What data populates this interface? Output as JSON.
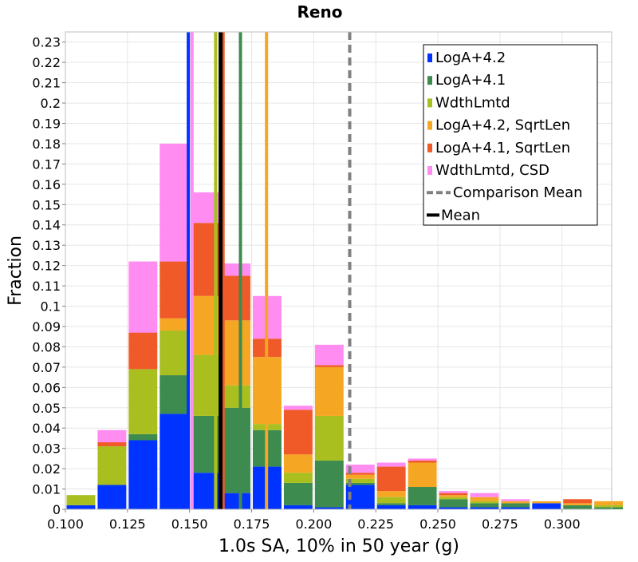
{
  "chart_data": {
    "type": "bar",
    "stacked": true,
    "title": "Reno",
    "xlabel": "1.0s SA, 10% in 50 year (g)",
    "ylabel": "Fraction",
    "xlim": [
      0.1,
      0.32
    ],
    "ylim": [
      0,
      0.235
    ],
    "bin_width": 0.0125,
    "bin_centers": [
      0.10625,
      0.11875,
      0.13125,
      0.14375,
      0.15625,
      0.16875,
      0.18125,
      0.19375,
      0.20625,
      0.21875,
      0.23125,
      0.24375,
      0.25625,
      0.26875,
      0.28125,
      0.29375,
      0.30625,
      0.31875
    ],
    "x_ticks": [
      "0.100",
      "0.125",
      "0.150",
      "0.175",
      "0.200",
      "0.225",
      "0.250",
      "0.275",
      "0.300"
    ],
    "x_tick_values": [
      0.1,
      0.125,
      0.15,
      0.175,
      0.2,
      0.225,
      0.25,
      0.275,
      0.3
    ],
    "y_ticks": [
      "0",
      "0.01",
      "0.02",
      "0.03",
      "0.04",
      "0.05",
      "0.06",
      "0.07",
      "0.08",
      "0.09",
      "0.1",
      "0.11",
      "0.12",
      "0.13",
      "0.14",
      "0.15",
      "0.16",
      "0.17",
      "0.18",
      "0.19",
      "0.2",
      "0.21",
      "0.22",
      "0.23"
    ],
    "y_tick_values": [
      0,
      0.01,
      0.02,
      0.03,
      0.04,
      0.05,
      0.06,
      0.07,
      0.08,
      0.09,
      0.1,
      0.11,
      0.12,
      0.13,
      0.14,
      0.15,
      0.16,
      0.17,
      0.18,
      0.19,
      0.2,
      0.21,
      0.22,
      0.23
    ],
    "grid": true,
    "legend_position": "top-right",
    "series": [
      {
        "name": "LogA+4.2",
        "color": "#0033ff",
        "values": [
          0.002,
          0.012,
          0.034,
          0.047,
          0.018,
          0.008,
          0.021,
          0.002,
          0.001,
          0.012,
          0.002,
          0.002,
          0.001,
          0.001,
          0.001,
          0.003,
          0.0,
          0.0
        ]
      },
      {
        "name": "LogA+4.1",
        "color": "#3d8b4e",
        "values": [
          0.0,
          0.0,
          0.003,
          0.019,
          0.028,
          0.042,
          0.018,
          0.011,
          0.023,
          0.001,
          0.001,
          0.009,
          0.004,
          0.002,
          0.002,
          0.0,
          0.002,
          0.001
        ]
      },
      {
        "name": "WdthLmtd",
        "color": "#a8bf1f",
        "values": [
          0.005,
          0.019,
          0.032,
          0.022,
          0.03,
          0.011,
          0.003,
          0.005,
          0.022,
          0.002,
          0.003,
          0.0,
          0.001,
          0.001,
          0.0,
          0.0,
          0.0,
          0.001
        ]
      },
      {
        "name": "LogA+4.2, SqrtLen",
        "color": "#f5a623",
        "values": [
          0.0,
          0.0,
          0.0,
          0.006,
          0.029,
          0.032,
          0.033,
          0.009,
          0.024,
          0.002,
          0.003,
          0.012,
          0.001,
          0.002,
          0.001,
          0.001,
          0.001,
          0.002
        ]
      },
      {
        "name": "LogA+4.1, SqrtLen",
        "color": "#f05a28",
        "values": [
          0.0,
          0.002,
          0.018,
          0.028,
          0.036,
          0.022,
          0.009,
          0.022,
          0.001,
          0.001,
          0.012,
          0.001,
          0.001,
          0.0,
          0.0,
          0.0,
          0.002,
          0.0
        ]
      },
      {
        "name": "WdthLmtd, CSD",
        "color": "#ff8cf0",
        "values": [
          0.0,
          0.006,
          0.035,
          0.058,
          0.015,
          0.006,
          0.021,
          0.002,
          0.01,
          0.004,
          0.002,
          0.001,
          0.001,
          0.002,
          0.001,
          0.0,
          0.0,
          0.0
        ]
      }
    ],
    "vertical_lines": [
      {
        "name": "LogA+4.2 mean",
        "x": 0.1495,
        "color": "#0033ff",
        "style": "solid"
      },
      {
        "name": "WdthLmtd mean",
        "x": 0.1605,
        "color": "#a8bf1f",
        "style": "solid"
      },
      {
        "name": "LogA+4.1, SqrtLen mean",
        "x": 0.1635,
        "color": "#f05a28",
        "style": "solid"
      },
      {
        "name": "LogA+4.1 mean",
        "x": 0.1705,
        "color": "#3d8b4e",
        "style": "solid"
      },
      {
        "name": "LogA+4.2, SqrtLen mean",
        "x": 0.181,
        "color": "#f5a623",
        "style": "solid"
      },
      {
        "name": "WdthLmtd, CSD mean",
        "x": 0.151,
        "color": "#ff8cf0",
        "style": "solid"
      },
      {
        "name": "Mean",
        "x": 0.1625,
        "color": "#000000",
        "style": "solid"
      },
      {
        "name": "Comparison Mean",
        "x": 0.2145,
        "color": "#808080",
        "style": "dashed"
      }
    ],
    "legend": [
      {
        "label": "LogA+4.2",
        "color": "#0033ff",
        "kind": "box"
      },
      {
        "label": "LogA+4.1",
        "color": "#3d8b4e",
        "kind": "box"
      },
      {
        "label": "WdthLmtd",
        "color": "#a8bf1f",
        "kind": "box"
      },
      {
        "label": "LogA+4.2, SqrtLen",
        "color": "#f5a623",
        "kind": "box"
      },
      {
        "label": "LogA+4.1, SqrtLen",
        "color": "#f05a28",
        "kind": "box"
      },
      {
        "label": "WdthLmtd, CSD",
        "color": "#ff8cf0",
        "kind": "box"
      },
      {
        "label": "Comparison Mean",
        "color": "#808080",
        "kind": "dashed"
      },
      {
        "label": "Mean",
        "color": "#000000",
        "kind": "line"
      }
    ]
  }
}
